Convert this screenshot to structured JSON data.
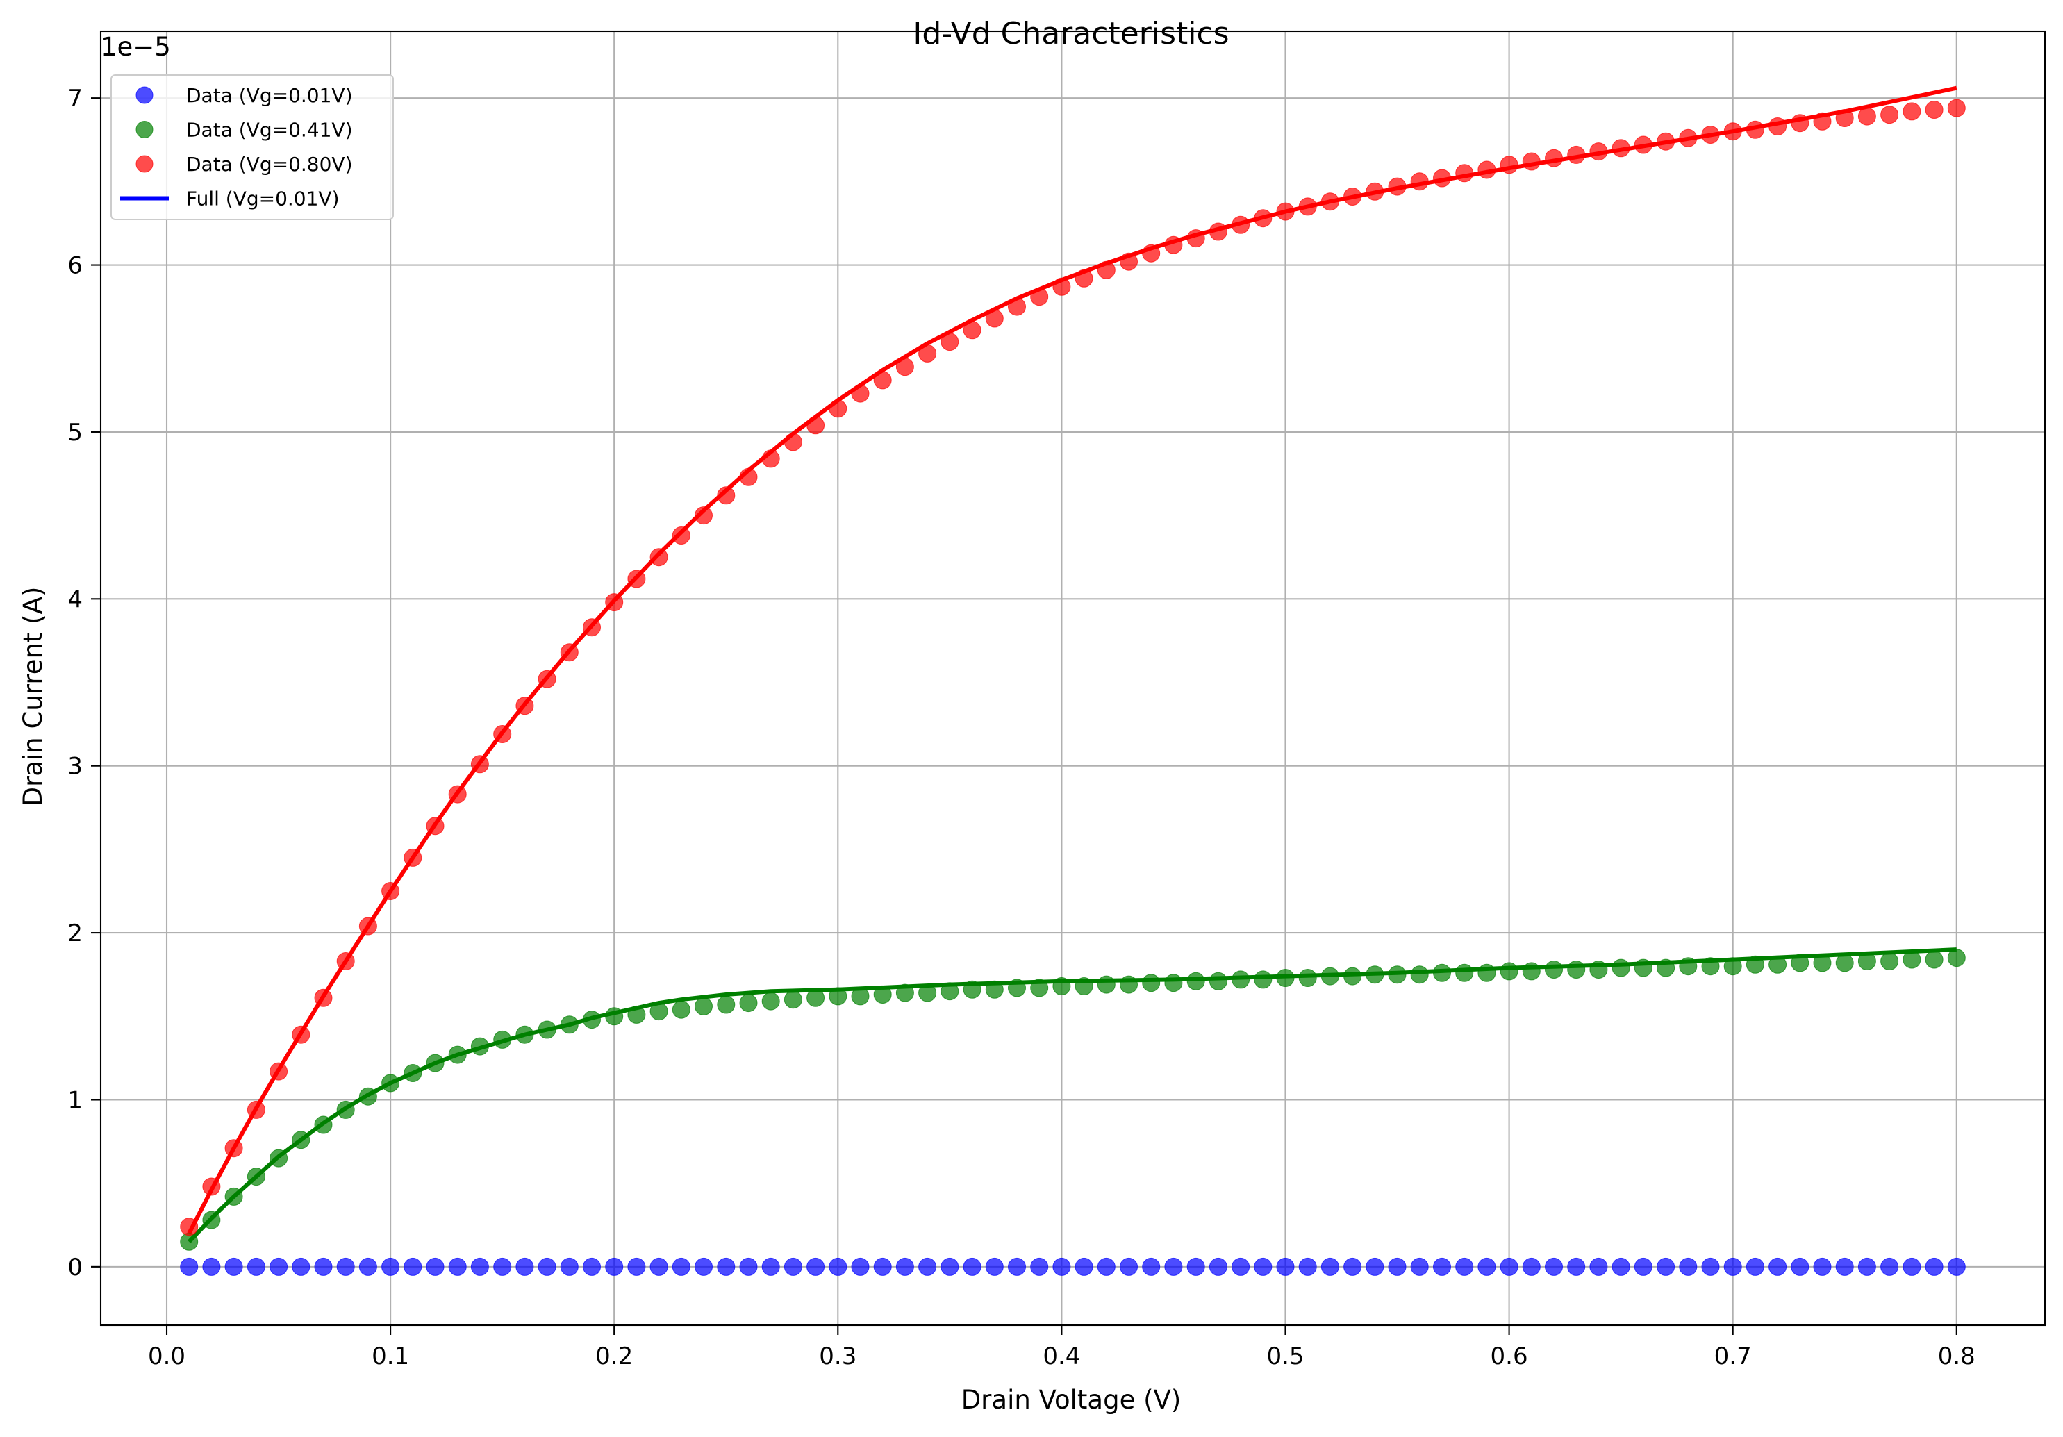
{
  "chart_data": {
    "type": "line",
    "title": "Id-Vd Characteristics",
    "xlabel": "Drain Voltage (V)",
    "ylabel": "Drain Current (A)",
    "y_offset_text": "1e−5",
    "xlim": [
      -0.0295,
      0.8395
    ],
    "ylim": [
      -0.35,
      7.4
    ],
    "x_ticks": [
      0.0,
      0.1,
      0.2,
      0.3,
      0.4,
      0.5,
      0.6,
      0.7,
      0.8
    ],
    "x_tick_labels": [
      "0.0",
      "0.1",
      "0.2",
      "0.3",
      "0.4",
      "0.5",
      "0.6",
      "0.7",
      "0.8"
    ],
    "y_ticks": [
      0,
      1,
      2,
      3,
      4,
      5,
      6,
      7
    ],
    "y_tick_labels": [
      "0",
      "1",
      "2",
      "3",
      "4",
      "5",
      "6",
      "7"
    ],
    "y_scale_note": "values in units of 1e-5 A",
    "grid": true,
    "legend_position": "top-left",
    "legend": [
      {
        "label": "Data (Vg=0.01V)",
        "kind": "marker",
        "color": "#0000ff"
      },
      {
        "label": "Data (Vg=0.41V)",
        "kind": "marker",
        "color": "#008000"
      },
      {
        "label": "Data (Vg=0.80V)",
        "kind": "marker",
        "color": "#ff0000"
      },
      {
        "label": "Full (Vg=0.01V)",
        "kind": "line",
        "color": "#0000ff"
      }
    ],
    "x": [
      0.01,
      0.02,
      0.03,
      0.04,
      0.05,
      0.06,
      0.07,
      0.08,
      0.09,
      0.1,
      0.11,
      0.12,
      0.13,
      0.14,
      0.15,
      0.16,
      0.17,
      0.18,
      0.19,
      0.2,
      0.21,
      0.22,
      0.23,
      0.24,
      0.25,
      0.26,
      0.27,
      0.28,
      0.29,
      0.3,
      0.31,
      0.32,
      0.33,
      0.34,
      0.35,
      0.36,
      0.37,
      0.38,
      0.39,
      0.4,
      0.41,
      0.42,
      0.43,
      0.44,
      0.45,
      0.46,
      0.47,
      0.48,
      0.49,
      0.5,
      0.51,
      0.52,
      0.53,
      0.54,
      0.55,
      0.56,
      0.57,
      0.58,
      0.59,
      0.6,
      0.61,
      0.62,
      0.63,
      0.64,
      0.65,
      0.66,
      0.67,
      0.68,
      0.69,
      0.7,
      0.71,
      0.72,
      0.73,
      0.74,
      0.75,
      0.76,
      0.77,
      0.78,
      0.79,
      0.8
    ],
    "scatter_series": [
      {
        "name": "Data (Vg=0.01V)",
        "color": "#0000ff",
        "values": [
          0,
          0,
          0,
          0,
          0,
          0,
          0,
          0,
          0,
          0,
          0,
          0,
          0,
          0,
          0,
          0,
          0,
          0,
          0,
          0,
          0,
          0,
          0,
          0,
          0,
          0,
          0,
          0,
          0,
          0,
          0,
          0,
          0,
          0,
          0,
          0,
          0,
          0,
          0,
          0,
          0,
          0,
          0,
          0,
          0,
          0,
          0,
          0,
          0,
          0,
          0,
          0,
          0,
          0,
          0,
          0,
          0,
          0,
          0,
          0,
          0,
          0,
          0,
          0,
          0,
          0,
          0,
          0,
          0,
          0,
          0,
          0,
          0,
          0,
          0,
          0,
          0,
          0,
          0,
          0
        ]
      },
      {
        "name": "Data (Vg=0.41V)",
        "color": "#008000",
        "values": [
          0.15,
          0.28,
          0.42,
          0.54,
          0.65,
          0.76,
          0.85,
          0.94,
          1.02,
          1.1,
          1.16,
          1.22,
          1.27,
          1.32,
          1.36,
          1.39,
          1.42,
          1.45,
          1.48,
          1.5,
          1.51,
          1.53,
          1.54,
          1.56,
          1.57,
          1.58,
          1.59,
          1.6,
          1.61,
          1.62,
          1.62,
          1.63,
          1.64,
          1.64,
          1.65,
          1.66,
          1.66,
          1.67,
          1.67,
          1.68,
          1.68,
          1.69,
          1.69,
          1.7,
          1.7,
          1.71,
          1.71,
          1.72,
          1.72,
          1.73,
          1.73,
          1.74,
          1.74,
          1.75,
          1.75,
          1.75,
          1.76,
          1.76,
          1.76,
          1.77,
          1.77,
          1.78,
          1.78,
          1.78,
          1.79,
          1.79,
          1.79,
          1.8,
          1.8,
          1.8,
          1.81,
          1.81,
          1.82,
          1.82,
          1.82,
          1.83,
          1.83,
          1.84,
          1.84,
          1.85
        ]
      },
      {
        "name": "Data (Vg=0.80V)",
        "color": "#ff0000",
        "values": [
          0.24,
          0.48,
          0.71,
          0.94,
          1.17,
          1.39,
          1.61,
          1.83,
          2.04,
          2.25,
          2.45,
          2.64,
          2.83,
          3.01,
          3.19,
          3.36,
          3.52,
          3.68,
          3.83,
          3.98,
          4.12,
          4.25,
          4.38,
          4.5,
          4.62,
          4.73,
          4.84,
          4.94,
          5.04,
          5.14,
          5.23,
          5.31,
          5.39,
          5.47,
          5.54,
          5.61,
          5.68,
          5.75,
          5.81,
          5.87,
          5.92,
          5.97,
          6.02,
          6.07,
          6.12,
          6.16,
          6.2,
          6.24,
          6.28,
          6.32,
          6.35,
          6.38,
          6.41,
          6.44,
          6.47,
          6.5,
          6.52,
          6.55,
          6.57,
          6.6,
          6.62,
          6.64,
          6.66,
          6.68,
          6.7,
          6.72,
          6.74,
          6.76,
          6.78,
          6.8,
          6.81,
          6.83,
          6.85,
          6.86,
          6.88,
          6.89,
          6.9,
          6.92,
          6.93,
          6.94
        ]
      }
    ],
    "line_series": [
      {
        "color": "#008000",
        "points": [
          [
            0.01,
            0.15
          ],
          [
            0.02,
            0.29
          ],
          [
            0.03,
            0.42
          ],
          [
            0.04,
            0.54
          ],
          [
            0.05,
            0.66
          ],
          [
            0.06,
            0.76
          ],
          [
            0.07,
            0.86
          ],
          [
            0.08,
            0.95
          ],
          [
            0.09,
            1.03
          ],
          [
            0.1,
            1.1
          ],
          [
            0.11,
            1.16
          ],
          [
            0.12,
            1.22
          ],
          [
            0.13,
            1.27
          ],
          [
            0.14,
            1.31
          ],
          [
            0.15,
            1.35
          ],
          [
            0.16,
            1.39
          ],
          [
            0.17,
            1.42
          ],
          [
            0.18,
            1.45
          ],
          [
            0.19,
            1.49
          ],
          [
            0.2,
            1.52
          ],
          [
            0.21,
            1.55
          ],
          [
            0.22,
            1.58
          ],
          [
            0.23,
            1.6
          ],
          [
            0.25,
            1.63
          ],
          [
            0.27,
            1.65
          ],
          [
            0.3,
            1.66
          ],
          [
            0.35,
            1.69
          ],
          [
            0.4,
            1.71
          ],
          [
            0.45,
            1.72
          ],
          [
            0.5,
            1.74
          ],
          [
            0.55,
            1.76
          ],
          [
            0.6,
            1.79
          ],
          [
            0.65,
            1.81
          ],
          [
            0.7,
            1.84
          ],
          [
            0.75,
            1.87
          ],
          [
            0.8,
            1.9
          ]
        ]
      },
      {
        "color": "#ff0000",
        "points": [
          [
            0.01,
            0.2
          ],
          [
            0.02,
            0.46
          ],
          [
            0.03,
            0.71
          ],
          [
            0.04,
            0.95
          ],
          [
            0.05,
            1.18
          ],
          [
            0.06,
            1.4
          ],
          [
            0.07,
            1.62
          ],
          [
            0.08,
            1.83
          ],
          [
            0.09,
            2.04
          ],
          [
            0.1,
            2.25
          ],
          [
            0.11,
            2.45
          ],
          [
            0.12,
            2.65
          ],
          [
            0.13,
            2.84
          ],
          [
            0.14,
            3.02
          ],
          [
            0.15,
            3.2
          ],
          [
            0.16,
            3.37
          ],
          [
            0.17,
            3.53
          ],
          [
            0.18,
            3.69
          ],
          [
            0.19,
            3.84
          ],
          [
            0.2,
            3.99
          ],
          [
            0.21,
            4.13
          ],
          [
            0.22,
            4.27
          ],
          [
            0.23,
            4.4
          ],
          [
            0.24,
            4.53
          ],
          [
            0.25,
            4.65
          ],
          [
            0.26,
            4.77
          ],
          [
            0.27,
            4.88
          ],
          [
            0.28,
            4.99
          ],
          [
            0.29,
            5.09
          ],
          [
            0.3,
            5.19
          ],
          [
            0.32,
            5.37
          ],
          [
            0.34,
            5.53
          ],
          [
            0.36,
            5.67
          ],
          [
            0.38,
            5.8
          ],
          [
            0.4,
            5.91
          ],
          [
            0.42,
            6.01
          ],
          [
            0.44,
            6.1
          ],
          [
            0.46,
            6.18
          ],
          [
            0.48,
            6.25
          ],
          [
            0.5,
            6.32
          ],
          [
            0.52,
            6.38
          ],
          [
            0.55,
            6.46
          ],
          [
            0.6,
            6.58
          ],
          [
            0.65,
            6.69
          ],
          [
            0.7,
            6.8
          ],
          [
            0.75,
            6.92
          ],
          [
            0.8,
            7.06
          ]
        ]
      }
    ]
  }
}
